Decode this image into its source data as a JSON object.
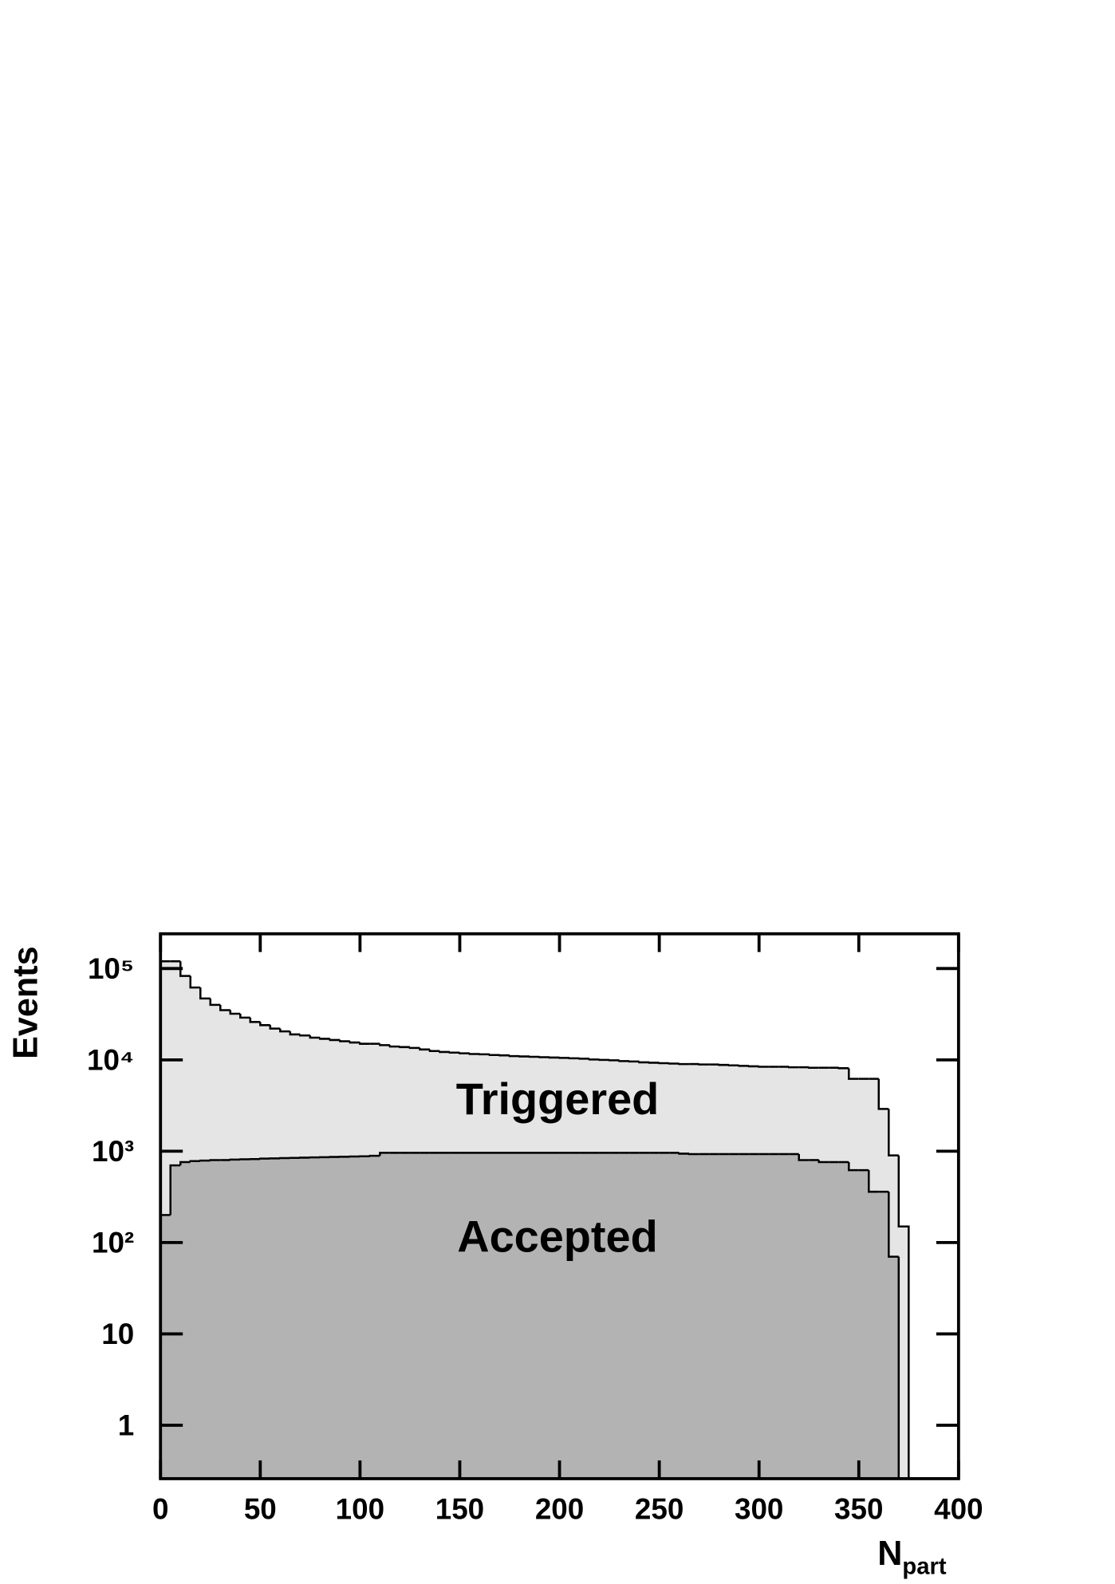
{
  "chart_data": {
    "type": "histogram",
    "ylabel": "Events",
    "xlabel": {
      "text": "N",
      "subscript": "part"
    },
    "annotations": [
      "Triggered",
      "Accepted"
    ],
    "log_y": true,
    "xlim": [
      0,
      400
    ],
    "ylim": [
      0.26,
      240000
    ],
    "xticks": [
      0,
      50,
      100,
      150,
      200,
      250,
      300,
      350,
      400
    ],
    "yticks": [
      1,
      10,
      {
        "value": 100,
        "label": "10²"
      },
      {
        "value": 1000,
        "label": "10³"
      },
      {
        "value": 10000,
        "label": "10⁴"
      },
      {
        "value": 100000,
        "label": "10⁵"
      }
    ],
    "bins": [
      0,
      5,
      10,
      15,
      20,
      25,
      30,
      35,
      40,
      45,
      50,
      55,
      60,
      65,
      70,
      75,
      80,
      85,
      90,
      95,
      100,
      105,
      110,
      115,
      120,
      125,
      130,
      135,
      140,
      145,
      150,
      155,
      160,
      165,
      170,
      175,
      180,
      185,
      190,
      195,
      200,
      205,
      210,
      215,
      220,
      225,
      230,
      235,
      240,
      245,
      250,
      255,
      260,
      265,
      270,
      275,
      280,
      285,
      290,
      295,
      300,
      305,
      310,
      315,
      320,
      325,
      330,
      335,
      340,
      345,
      350,
      355,
      360,
      365,
      370,
      375
    ],
    "series": [
      {
        "color": "#e5e5e5",
        "values": [
          120000,
          120000,
          83000,
          62000,
          47000,
          40000,
          35000,
          32000,
          29000,
          26000,
          24000,
          22000,
          20500,
          19000,
          18500,
          17500,
          17000,
          16500,
          16000,
          15500,
          15000,
          15000,
          14500,
          14000,
          13800,
          13500,
          13000,
          12500,
          12200,
          12000,
          11800,
          11600,
          11500,
          11300,
          11200,
          11000,
          10900,
          10800,
          10700,
          10600,
          10500,
          10400,
          10300,
          10100,
          10000,
          9900,
          9700,
          9600,
          9400,
          9300,
          9200,
          9100,
          9000,
          9000,
          8900,
          8900,
          8800,
          8700,
          8600,
          8500,
          8400,
          8400,
          8400,
          8300,
          8300,
          8200,
          8200,
          8200,
          8100,
          6200,
          6200,
          6200,
          2900,
          900,
          150
        ]
      },
      {
        "color": "#b3b3b3",
        "values": [
          200,
          700,
          760,
          780,
          790,
          800,
          800,
          810,
          815,
          820,
          830,
          835,
          840,
          845,
          850,
          855,
          860,
          865,
          870,
          875,
          880,
          890,
          960,
          960,
          960,
          960,
          960,
          960,
          960,
          960,
          960,
          960,
          960,
          960,
          960,
          960,
          960,
          960,
          960,
          960,
          960,
          960,
          960,
          960,
          960,
          960,
          960,
          960,
          960,
          960,
          960,
          960,
          940,
          930,
          930,
          930,
          930,
          930,
          930,
          930,
          930,
          930,
          930,
          930,
          800,
          800,
          760,
          760,
          760,
          620,
          620,
          360,
          360,
          70,
          null
        ]
      }
    ]
  }
}
